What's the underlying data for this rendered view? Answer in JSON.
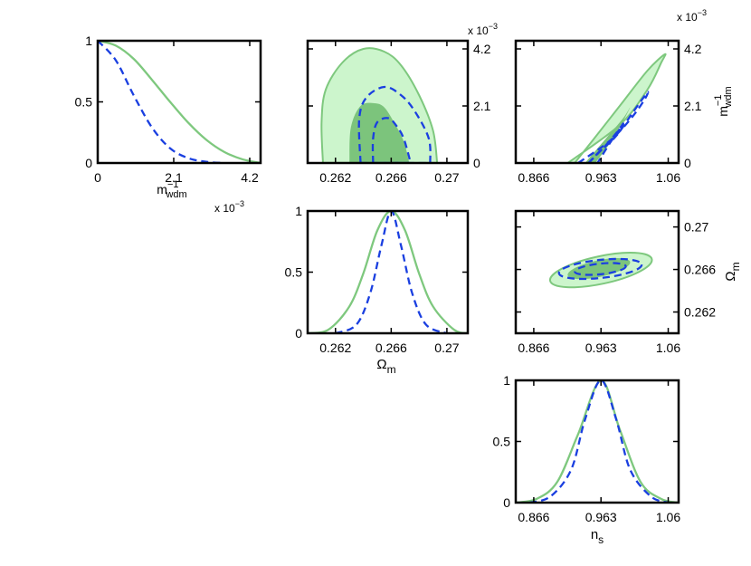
{
  "colors": {
    "solid_line": "#7ec87e",
    "outer_fill": "#ccf5cc",
    "inner_fill": "#7cc47c",
    "dashed_line": "#1a3fe0",
    "axes": "#000000"
  },
  "chart_data": {
    "type": "triangle",
    "title": "",
    "legend": [],
    "params": {
      "m": {
        "label_main": "m",
        "label_sup": "−1",
        "label_sub": "wdm",
        "exponent": "x 10",
        "exponent_power": "−3",
        "range": [
          0,
          4.5
        ],
        "ticks": [
          0,
          2.1,
          4.2
        ],
        "tick_labels": [
          "0",
          "2.1",
          "4.2"
        ]
      },
      "om": {
        "label_main": "Ω",
        "label_sub": "m",
        "range": [
          0.26,
          0.2715
        ],
        "ticks": [
          0.262,
          0.266,
          0.27
        ],
        "tick_labels": [
          "0.262",
          "0.266",
          "0.27"
        ]
      },
      "ns": {
        "label_main": "n",
        "label_sub": "s",
        "range": [
          0.84,
          1.075
        ],
        "ticks": [
          0.866,
          0.963,
          1.06
        ],
        "tick_labels": [
          "0.866",
          "0.963",
          "1.06"
        ]
      }
    },
    "pdf_y": {
      "range": [
        0,
        1
      ],
      "ticks": [
        0,
        0.5,
        1
      ],
      "tick_labels": [
        "0",
        "0.5",
        "1"
      ]
    },
    "panels": [
      {
        "id": "pdf-m",
        "type": "line",
        "xparam": "m",
        "series": [
          {
            "name": "solid",
            "style": "solid",
            "x": [
              0,
              0.5,
              1.0,
              1.5,
              2.0,
              2.5,
              3.0,
              3.5,
              4.0,
              4.5
            ],
            "y": [
              1.0,
              0.96,
              0.85,
              0.68,
              0.5,
              0.33,
              0.19,
              0.09,
              0.03,
              0.0
            ]
          },
          {
            "name": "dashed",
            "style": "dashed",
            "x": [
              0,
              0.5,
              1.0,
              1.5,
              2.0,
              2.5,
              3.0,
              3.5
            ],
            "y": [
              1.0,
              0.84,
              0.55,
              0.29,
              0.12,
              0.04,
              0.01,
              0.0
            ]
          }
        ]
      },
      {
        "id": "pdf-om",
        "type": "line",
        "xparam": "om",
        "series": [
          {
            "name": "solid",
            "style": "solid",
            "x": [
              0.26,
              0.2615,
              0.263,
              0.264,
              0.265,
              0.266,
              0.267,
              0.268,
              0.269,
              0.2705,
              0.2715
            ],
            "y": [
              0.0,
              0.03,
              0.22,
              0.49,
              0.84,
              1.0,
              0.84,
              0.49,
              0.22,
              0.03,
              0.0
            ]
          },
          {
            "name": "dashed",
            "style": "dashed",
            "x": [
              0.262,
              0.2635,
              0.2645,
              0.2653,
              0.266,
              0.2667,
              0.2675,
              0.2685,
              0.27
            ],
            "y": [
              0.0,
              0.07,
              0.33,
              0.72,
              1.0,
              0.72,
              0.33,
              0.07,
              0.0
            ]
          }
        ]
      },
      {
        "id": "pdf-ns",
        "type": "line",
        "xparam": "ns",
        "series": [
          {
            "name": "solid",
            "style": "solid",
            "x": [
              0.84,
              0.87,
              0.9,
              0.93,
              0.963,
              0.99,
              1.02,
              1.05,
              1.075
            ],
            "y": [
              0.0,
              0.03,
              0.17,
              0.56,
              1.0,
              0.6,
              0.17,
              0.03,
              0.0
            ]
          },
          {
            "name": "dashed",
            "style": "dashed",
            "x": [
              0.86,
              0.89,
              0.92,
              0.94,
              0.963,
              0.985,
              1.005,
              1.035,
              1.06
            ],
            "y": [
              0.0,
              0.05,
              0.27,
              0.68,
              1.0,
              0.68,
              0.27,
              0.05,
              0.0
            ]
          }
        ]
      },
      {
        "id": "contour-om-m",
        "type": "contour",
        "xparam": "om",
        "yparam": "m",
        "regions": [
          {
            "name": "outer-filled",
            "style": "filled-outer",
            "x": [
              0.2611,
              0.261,
              0.2613,
              0.2625,
              0.264,
              0.2655,
              0.2667,
              0.268,
              0.269,
              0.2693
            ],
            "y": [
              0,
              1.5,
              2.7,
              3.7,
              4.2,
              4.1,
              3.6,
              2.5,
              1.2,
              0
            ]
          },
          {
            "name": "inner-filled",
            "style": "filled-inner",
            "x": [
              0.263,
              0.2631,
              0.2638,
              0.2648,
              0.2655,
              0.2662,
              0.2669,
              0.2673
            ],
            "y": [
              0,
              1.3,
              2.1,
              2.2,
              2.05,
              1.5,
              0.8,
              0
            ]
          },
          {
            "name": "dashed-outer",
            "style": "dashed",
            "x": [
              0.2638,
              0.2637,
              0.2642,
              0.2655,
              0.2667,
              0.2677,
              0.2687,
              0.2688
            ],
            "y": [
              0,
              1.6,
              2.4,
              2.8,
              2.5,
              1.9,
              0.9,
              0
            ]
          },
          {
            "name": "dashed-inner",
            "style": "dashed",
            "x": [
              0.2647,
              0.2647,
              0.265,
              0.2658,
              0.2664,
              0.2669,
              0.2674
            ],
            "y": [
              0,
              0.9,
              1.5,
              1.65,
              1.35,
              0.9,
              0
            ]
          }
        ]
      },
      {
        "id": "contour-ns-m",
        "type": "contour",
        "xparam": "ns",
        "yparam": "m",
        "regions": [
          {
            "name": "outer-filled",
            "style": "filled-outer",
            "x": [
              0.915,
              0.99,
              1.03,
              1.05,
              1.055,
              1.03,
              0.99,
              0.95,
              0.925
            ],
            "y": [
              0,
              1.4,
              2.7,
              3.7,
              4.0,
              3.4,
              2.1,
              0.8,
              0
            ]
          },
          {
            "name": "inner-filled",
            "style": "filled-inner",
            "x": [
              0.94,
              0.97,
              0.995,
              1.005,
              0.995,
              0.975,
              0.955
            ],
            "y": [
              0,
              0.9,
              1.65,
              2.05,
              1.55,
              0.7,
              0
            ]
          },
          {
            "name": "dashed-outer",
            "style": "dashed",
            "x": [
              0.93,
              0.975,
              1.005,
              1.025,
              1.03,
              1.01,
              0.985,
              0.96,
              0.945
            ],
            "y": [
              0,
              0.8,
              1.6,
              2.3,
              2.6,
              1.9,
              1.0,
              0.4,
              0
            ]
          },
          {
            "name": "dashed-inner",
            "style": "dashed",
            "x": [
              0.945,
              0.968,
              0.985,
              0.995,
              0.99,
              0.975,
              0.958
            ],
            "y": [
              0,
              0.6,
              1.1,
              1.45,
              1.25,
              0.7,
              0
            ]
          }
        ]
      },
      {
        "id": "contour-ns-om",
        "type": "contour",
        "xparam": "ns",
        "yparam": "om",
        "ellipses": [
          {
            "name": "outer-filled",
            "style": "filled-outer",
            "cx": 0.963,
            "cy": 0.26595,
            "rx": 0.075,
            "ry": 0.0013,
            "angle": -12
          },
          {
            "name": "inner-filled",
            "style": "filled-inner",
            "cx": 0.96,
            "cy": 0.26608,
            "rx": 0.046,
            "ry": 0.00078,
            "angle": -12
          },
          {
            "name": "dashed-outer",
            "style": "dashed",
            "cx": 0.962,
            "cy": 0.26605,
            "rx": 0.06,
            "ry": 0.00085,
            "angle": -6
          },
          {
            "name": "dashed-inner",
            "style": "dashed",
            "cx": 0.962,
            "cy": 0.26605,
            "rx": 0.037,
            "ry": 0.0005,
            "angle": -6
          }
        ]
      }
    ]
  }
}
